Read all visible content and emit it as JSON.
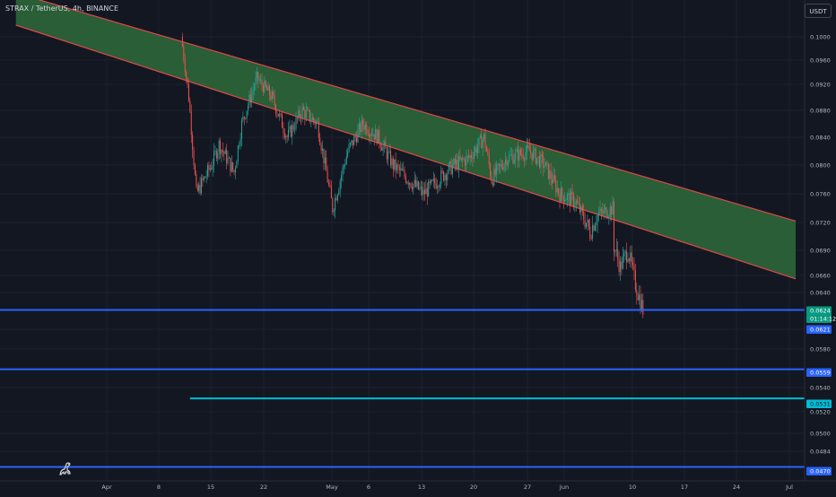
{
  "header": {
    "symbol_line": "STRAX / TetherUS, 4h, BINANCE",
    "currency_button": "USDT"
  },
  "logo_icon": "tradingview-dino-icon",
  "colors": {
    "background": "#131722",
    "grid": "#1e222d",
    "up_candle": "#26a69a",
    "down_candle": "#ef5350",
    "channel_fill": "#2e6b3a",
    "channel_border": "#e04848",
    "level_blue": "#2962ff",
    "level_cyan": "#00bcd4",
    "last_price_badge": "#089981",
    "axis_text": "#b2b5be"
  },
  "chart_data": {
    "type": "candlestick",
    "symbol": "STRAX / TetherUS",
    "interval": "4h",
    "exchange": "BINANCE",
    "x_ticks": [
      "Apr",
      "8",
      "15",
      "22",
      "May",
      "6",
      "13",
      "20",
      "27",
      "Jun",
      "10",
      "17",
      "24",
      "Jul"
    ],
    "y_ticks": [
      "0.1000",
      "0.0960",
      "0.0920",
      "0.0880",
      "0.0840",
      "0.0800",
      "0.0760",
      "0.0720",
      "0.0690",
      "0.0660",
      "0.0640",
      "0.0600",
      "0.0580",
      "0.0540",
      "0.0520",
      "0.0500",
      "0.0484"
    ],
    "price_labels": [
      {
        "value": "0.0624",
        "kind": "last-price"
      },
      {
        "value": "01:14:12",
        "kind": "countdown"
      },
      {
        "value": "0.0621",
        "kind": "level"
      },
      {
        "value": "0.0559",
        "kind": "level"
      },
      {
        "value": "0.0531",
        "kind": "level-cyan"
      },
      {
        "value": "0.0470",
        "kind": "level"
      }
    ],
    "horizontal_levels": [
      {
        "price": 0.0621,
        "color": "blue"
      },
      {
        "price": 0.0559,
        "color": "blue"
      },
      {
        "price": 0.0531,
        "color": "cyan",
        "starts": "Apr 12"
      },
      {
        "price": 0.047,
        "color": "blue"
      }
    ],
    "channel": {
      "upper": [
        {
          "date": "Mar 20",
          "price": 0.1075
        },
        {
          "date": "Jul 1",
          "price": 0.0722
        }
      ],
      "lower": [
        {
          "date": "Mar 20",
          "price": 0.102
        },
        {
          "date": "Jul 1",
          "price": 0.0656
        }
      ]
    },
    "price_path": [
      {
        "date": "Apr 11",
        "price": 0.1
      },
      {
        "date": "Apr 12",
        "price": 0.09
      },
      {
        "date": "Apr 13",
        "price": 0.076
      },
      {
        "date": "Apr 15",
        "price": 0.08
      },
      {
        "date": "Apr 16",
        "price": 0.083
      },
      {
        "date": "Apr 18",
        "price": 0.079
      },
      {
        "date": "Apr 19",
        "price": 0.086
      },
      {
        "date": "Apr 21",
        "price": 0.093
      },
      {
        "date": "Apr 23",
        "price": 0.09
      },
      {
        "date": "Apr 25",
        "price": 0.084
      },
      {
        "date": "Apr 27",
        "price": 0.088
      },
      {
        "date": "Apr 29",
        "price": 0.086
      },
      {
        "date": "May 1",
        "price": 0.074
      },
      {
        "date": "May 3",
        "price": 0.082
      },
      {
        "date": "May 5",
        "price": 0.086
      },
      {
        "date": "May 7",
        "price": 0.084
      },
      {
        "date": "May 9",
        "price": 0.08
      },
      {
        "date": "May 11",
        "price": 0.078
      },
      {
        "date": "May 13",
        "price": 0.076
      },
      {
        "date": "May 15",
        "price": 0.078
      },
      {
        "date": "May 17",
        "price": 0.08
      },
      {
        "date": "May 19",
        "price": 0.081
      },
      {
        "date": "May 21",
        "price": 0.084
      },
      {
        "date": "May 22",
        "price": 0.078
      },
      {
        "date": "May 24",
        "price": 0.081
      },
      {
        "date": "May 27",
        "price": 0.082
      },
      {
        "date": "May 29",
        "price": 0.08
      },
      {
        "date": "May 31",
        "price": 0.076
      },
      {
        "date": "Jun 2",
        "price": 0.075
      },
      {
        "date": "Jun 4",
        "price": 0.071
      },
      {
        "date": "Jun 5",
        "price": 0.073
      },
      {
        "date": "Jun 7",
        "price": 0.074
      },
      {
        "date": "Jun 7",
        "price": 0.07
      },
      {
        "date": "Jun 8",
        "price": 0.067
      },
      {
        "date": "Jun 9",
        "price": 0.069
      },
      {
        "date": "Jun 10",
        "price": 0.065
      },
      {
        "date": "Jun 11",
        "price": 0.0621
      }
    ]
  }
}
